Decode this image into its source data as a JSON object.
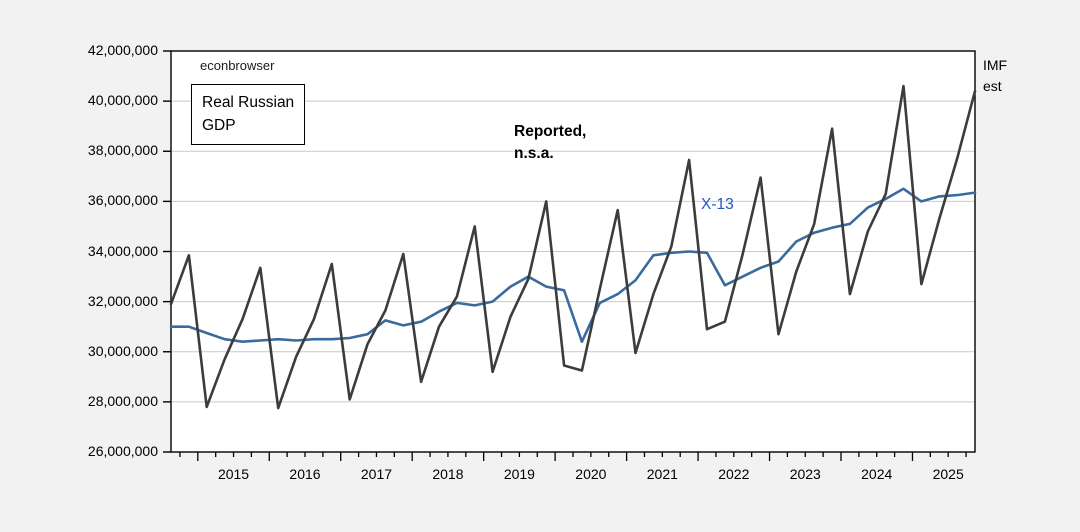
{
  "page": {
    "background_color": "#f2f2f2",
    "plot_background_color": "#ffffff",
    "gridline_color": "#c9c9c9",
    "frame_color": "#000000"
  },
  "annotations": {
    "watermark": "econbrowser",
    "box_label": "Real Russian\nGDP",
    "series1_label": "Reported,\nn.s.a.",
    "series2_label": "X-13",
    "right_label": "IMF\nest"
  },
  "chart_data": {
    "type": "line",
    "title": "Real Russian GDP",
    "units": "millions (axis shown as e.g. 26,000,000)",
    "x": [
      "2014Q3",
      "2014Q4",
      "2015Q1",
      "2015Q2",
      "2015Q3",
      "2015Q4",
      "2016Q1",
      "2016Q2",
      "2016Q3",
      "2016Q4",
      "2017Q1",
      "2017Q2",
      "2017Q3",
      "2017Q4",
      "2018Q1",
      "2018Q2",
      "2018Q3",
      "2018Q4",
      "2019Q1",
      "2019Q2",
      "2019Q3",
      "2019Q4",
      "2020Q1",
      "2020Q2",
      "2020Q3",
      "2020Q4",
      "2021Q1",
      "2021Q2",
      "2021Q3",
      "2021Q4",
      "2022Q1",
      "2022Q2",
      "2022Q3",
      "2022Q4",
      "2023Q1",
      "2023Q2",
      "2023Q3",
      "2023Q4",
      "2024Q1",
      "2024Q2",
      "2024Q3",
      "2024Q4",
      "2025Q1",
      "2025Q2",
      "2025Q3",
      "2025Q4"
    ],
    "series": [
      {
        "name": "Reported, n.s.a.",
        "color": "#3c3c3c",
        "values": [
          31.9,
          33.85,
          27.8,
          29.7,
          31.3,
          33.35,
          27.75,
          29.8,
          31.3,
          33.5,
          28.1,
          30.3,
          31.65,
          33.9,
          28.8,
          31.0,
          32.2,
          35.0,
          29.2,
          31.4,
          32.9,
          36.0,
          29.45,
          29.25,
          32.5,
          35.65,
          29.95,
          32.3,
          34.2,
          37.65,
          30.9,
          31.2,
          33.9,
          36.95,
          30.7,
          33.2,
          35.1,
          38.9,
          32.3,
          34.8,
          36.3,
          40.6,
          32.7,
          35.3,
          37.7,
          40.4
        ]
      },
      {
        "name": "X-13",
        "color": "#3a6b9c",
        "values": [
          31.0,
          31.0,
          30.75,
          30.5,
          30.4,
          30.45,
          30.5,
          30.45,
          30.5,
          30.5,
          30.55,
          30.7,
          31.25,
          31.05,
          31.2,
          31.6,
          31.95,
          31.85,
          32.0,
          32.6,
          33.0,
          32.6,
          32.45,
          30.4,
          31.95,
          32.3,
          32.85,
          33.85,
          33.95,
          34.0,
          33.95,
          32.65,
          33.0,
          33.35,
          33.6,
          34.4,
          34.75,
          34.95,
          35.1,
          35.75,
          36.1,
          36.5,
          36.0,
          36.2,
          36.25,
          36.35
        ]
      }
    ],
    "ylim": [
      26,
      42
    ],
    "xlim_decimal_years": [
      2014.625,
      2025.875
    ],
    "y_ticks": [
      "26,000,000",
      "28,000,000",
      "30,000,000",
      "32,000,000",
      "34,000,000",
      "36,000,000",
      "38,000,000",
      "40,000,000",
      "42,000,000"
    ],
    "x_ticks": [
      "2015",
      "2016",
      "2017",
      "2018",
      "2019",
      "2020",
      "2021",
      "2022",
      "2023",
      "2024",
      "2025"
    ],
    "grid": "horizontal",
    "legend_position": "inline-annotations"
  }
}
